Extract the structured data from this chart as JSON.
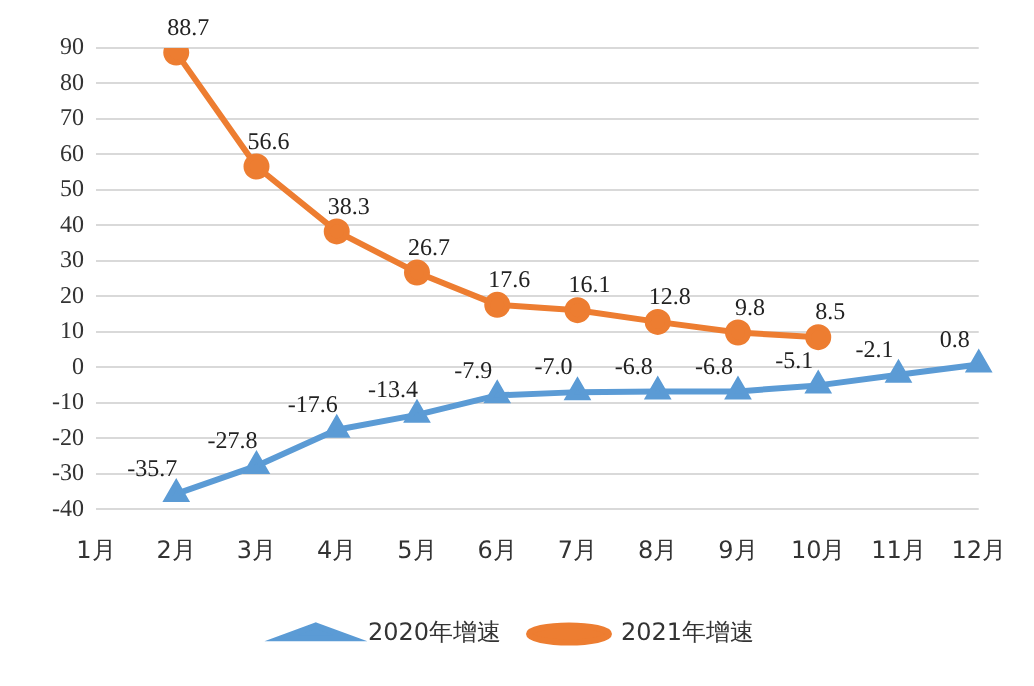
{
  "chart_data": {
    "type": "line",
    "categories": [
      "1月",
      "2月",
      "3月",
      "4月",
      "5月",
      "6月",
      "7月",
      "8月",
      "9月",
      "10月",
      "11月",
      "12月"
    ],
    "series": [
      {
        "name": "2020年增速",
        "color": "#5b9bd5",
        "marker": "triangle",
        "values": [
          null,
          -35.7,
          -27.8,
          -17.6,
          -13.4,
          -7.9,
          -7.0,
          -6.8,
          -6.8,
          -5.1,
          -2.1,
          0.8
        ],
        "value_labels": [
          null,
          "-35.7",
          "-27.8",
          "-17.6",
          "-13.4",
          "-7.9",
          "-7.0",
          "-6.8",
          "-6.8",
          "-5.1",
          "-2.1",
          "0.8"
        ]
      },
      {
        "name": "2021年增速",
        "color": "#ed7d31",
        "marker": "circle",
        "values": [
          null,
          88.7,
          56.6,
          38.3,
          26.7,
          17.6,
          16.1,
          12.8,
          9.8,
          8.5,
          null,
          null
        ],
        "value_labels": [
          null,
          "88.7",
          "56.6",
          "38.3",
          "26.7",
          "17.6",
          "16.1",
          "12.8",
          "9.8",
          "8.5",
          null,
          null
        ]
      }
    ],
    "ylim": [
      -40,
      90
    ],
    "yticks": [
      -40,
      -30,
      -20,
      -10,
      0,
      10,
      20,
      30,
      40,
      50,
      60,
      70,
      80,
      90
    ],
    "grid": "y",
    "legend": "bottom",
    "line_style": "solid"
  }
}
